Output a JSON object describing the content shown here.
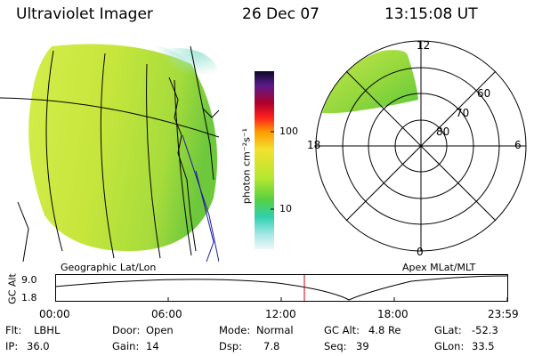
{
  "header": {
    "instrument": "Ultraviolet Imager",
    "date": "26 Dec 07",
    "time": "13:15:08 UT"
  },
  "geo_panel": {
    "label": "Geographic Lat/Lon"
  },
  "colorbar": {
    "unit_label": "photon cm⁻²s⁻¹",
    "ticks": [
      "100",
      "10"
    ],
    "colors": [
      "#1a0a3a",
      "#5a1a8a",
      "#b0002a",
      "#ff2020",
      "#ff9a00",
      "#f2e030",
      "#b6e830",
      "#58d040",
      "#30d0b0",
      "#a8e8e8",
      "#e8f4f4"
    ]
  },
  "polar_panel": {
    "label": "Apex MLat/MLT",
    "mlt_labels": {
      "top": "12",
      "left": "18",
      "right": "6",
      "bottom": "0"
    },
    "lat_labels": [
      "60",
      "70",
      "80"
    ]
  },
  "altitude_plot": {
    "ylabel": "GC Alt",
    "yticks": [
      "9.0",
      "1.8"
    ],
    "xticks": [
      "00:00",
      "06:00",
      "12:00",
      "18:00",
      "23:59"
    ],
    "marker_color": "#cc0000"
  },
  "status": {
    "flt_label": "Flt:",
    "flt_value": "LBHL",
    "door_label": "Door:",
    "door_value": "Open",
    "mode_label": "Mode:",
    "mode_value": "Normal",
    "gcalt_label": "GC Alt:",
    "gcalt_value": "4.8 Re",
    "glat_label": "GLat:",
    "glat_value": "-52.3",
    "ip_label": "IP:",
    "ip_value": "36.0",
    "gain_label": "Gain:",
    "gain_value": "14",
    "dsp_label": "Dsp:",
    "dsp_value": "7.8",
    "seq_label": "Seq:",
    "seq_value": "39",
    "glon_label": "GLon:",
    "glon_value": "33.5"
  }
}
